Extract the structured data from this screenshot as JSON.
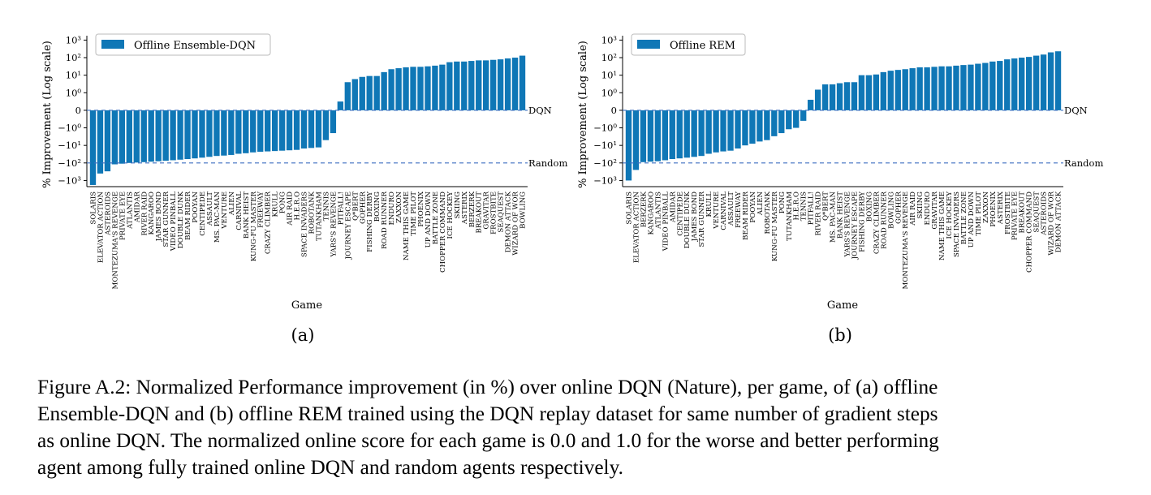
{
  "figure": {
    "panels": [
      {
        "sublabel": "(a)"
      },
      {
        "sublabel": "(b)"
      }
    ],
    "caption_lines": [
      "Figure A.2: Normalized Performance improvement (in %) over online DQN (Nature), per game, of (a) offline",
      "Ensemble-DQN and (b) offline REM trained using the DQN replay dataset for same number of gradient steps",
      "as online DQN. The normalized online score for each game is 0.0 and 1.0 for the worse and better performing",
      "agent among fully trained online DQN and random agents respectively."
    ]
  },
  "colors": {
    "bar": "#0f77b6",
    "refline": "#3d6fc0"
  },
  "chart_data": [
    {
      "type": "bar",
      "scale": "symlog",
      "title": "",
      "xlabel": "Game",
      "ylabel": "% Improvement (Log scale)",
      "legend": {
        "label": "Offline Ensemble-DQN",
        "placement": "top-left"
      },
      "ytick_labels": [
        "10³",
        "10²",
        "10¹",
        "10⁰",
        "0",
        "−10⁰",
        "−10¹",
        "−10²",
        "−10³"
      ],
      "hlines": [
        {
          "label": "DQN",
          "y": 0
        },
        {
          "label": "Random",
          "y": -100
        }
      ],
      "categories": [
        "Solaris",
        "Elevator Action",
        "Asteroids",
        "Montezuma's Revenge",
        "Private Eye",
        "Atlantis",
        "Amidar",
        "River Raid",
        "Kangaroo",
        "James Bond",
        "Star Gunner",
        "Video Pinball",
        "Double Dunk",
        "Beam Rider",
        "Pooyan",
        "Centipede",
        "Assault",
        "Ms. Pac-Man",
        "Venture",
        "Alien",
        "Carnival",
        "Bank Heist",
        "Kung-Fu Master",
        "Freeway",
        "Crazy Climber",
        "Krull",
        "Pong",
        "Air Raid",
        "H.E.R.O",
        "Space Invaders",
        "Robotank",
        "Tutankham",
        "Tennis",
        "Yars's Revenge",
        "Pitfall!",
        "Journey Escape",
        "Q*Bert",
        "Gopher",
        "Fishing Derby",
        "Boxing",
        "Road Runner",
        "Enduro",
        "Zaxxon",
        "Name This Game",
        "Time Pilot",
        "Phoenix",
        "Up and Down",
        "Battle Zone",
        "Chopper Command",
        "Ice Hockey",
        "Skiing",
        "Asterix",
        "Berzerk",
        "Breakout",
        "Gravitar",
        "Frostbite",
        "Seaquest",
        "Demon Attack",
        "Wizard of Wor",
        "Bowling"
      ],
      "values": [
        -1800,
        -400,
        -300,
        -120,
        -110,
        -100,
        -95,
        -90,
        -85,
        -80,
        -75,
        -70,
        -65,
        -60,
        -55,
        -50,
        -45,
        -40,
        -38,
        -35,
        -30,
        -28,
        -25,
        -23,
        -22,
        -21,
        -20,
        -19,
        -18,
        -15,
        -14,
        -13,
        -5,
        -2,
        0.5,
        4,
        6,
        8,
        9,
        9,
        15,
        22,
        25,
        28,
        30,
        30,
        32,
        35,
        40,
        55,
        60,
        60,
        65,
        70,
        70,
        75,
        80,
        90,
        100,
        130
      ]
    },
    {
      "type": "bar",
      "scale": "symlog",
      "title": "",
      "xlabel": "Game",
      "ylabel": "% Improvement (Log scale)",
      "legend": {
        "label": "Offline REM",
        "placement": "top-left"
      },
      "ytick_labels": [
        "10³",
        "10²",
        "10¹",
        "10⁰",
        "0",
        "−10⁰",
        "−10¹",
        "−10²",
        "−10³"
      ],
      "hlines": [
        {
          "label": "DQN",
          "y": 0
        },
        {
          "label": "Random",
          "y": -100
        }
      ],
      "categories": [
        "Solaris",
        "Elevator Action",
        "Berzerk",
        "Kangaroo",
        "Atlantis",
        "Video Pinball",
        "Amidar",
        "Centipede",
        "Double Dunk",
        "James Bond",
        "Star Gunner",
        "Krull",
        "Venture",
        "Carnival",
        "Assault",
        "Freeway",
        "Beam Rider",
        "Pooyan",
        "Alien",
        "Robotank",
        "Kung-Fu Master",
        "Pong",
        "Tutankham",
        "H.E.R.O",
        "Tennis",
        "Pitfall!",
        "River Raid",
        "Q*Bert",
        "Ms. Pac-Man",
        "Bank Heist",
        "Yars's Revenge",
        "Journey Escape",
        "Fishing Derby",
        "Boxing",
        "Crazy Climber",
        "Road Runner",
        "Bowling",
        "Gopher",
        "Montezuma's Revenge",
        "Air Raid",
        "Skiing",
        "Enduro",
        "Gravitar",
        "Name This Game",
        "Ice Hockey",
        "Space Invaders",
        "Battle Zone",
        "Up and Down",
        "Time Pilot",
        "Zaxxon",
        "Phoenix",
        "Asterix",
        "Frostbite",
        "Private Eye",
        "Breakout",
        "Chopper Command",
        "Seaquest",
        "Asteroids",
        "Wizard of Wor",
        "Demon Attack"
      ],
      "values": [
        -1000,
        -250,
        -90,
        -85,
        -80,
        -70,
        -60,
        -55,
        -50,
        -45,
        -40,
        -30,
        -25,
        -22,
        -20,
        -15,
        -10,
        -8,
        -6,
        -5,
        -3,
        -2,
        -1.2,
        -1,
        -0.6,
        0.6,
        1.5,
        3,
        3,
        3.5,
        4,
        4,
        10,
        10,
        11,
        15,
        18,
        20,
        22,
        25,
        28,
        28,
        30,
        32,
        32,
        35,
        38,
        40,
        45,
        50,
        60,
        65,
        80,
        90,
        100,
        110,
        130,
        150,
        200,
        230
      ]
    }
  ]
}
